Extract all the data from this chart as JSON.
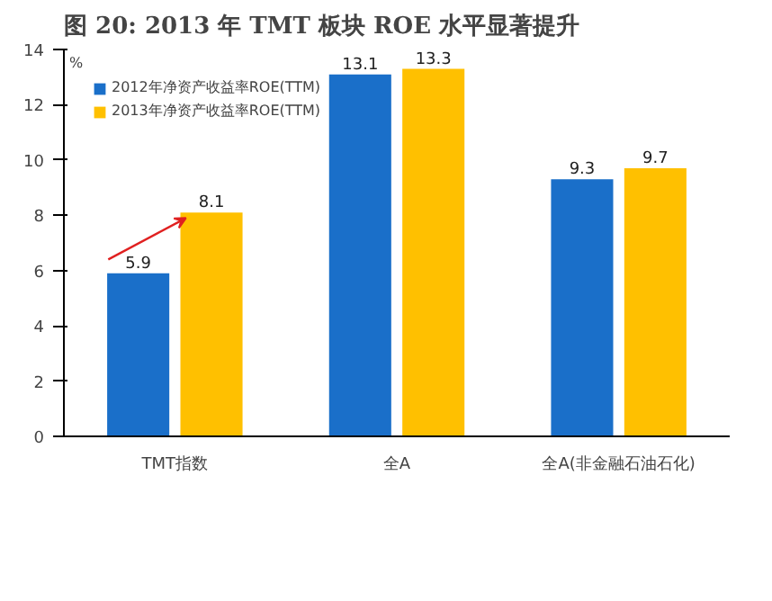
{
  "chart_data": {
    "type": "bar",
    "title": "图 20:  2013 年 TMT 板块 ROE 水平显著提升",
    "categories": [
      "TMT指数",
      "全A",
      "全A(非金融石油石化)"
    ],
    "series": [
      {
        "name": "2012年净资产收益率ROE(TTM)",
        "color": "#1a6fc9",
        "values": [
          5.9,
          13.1,
          9.3
        ]
      },
      {
        "name": "2013年净资产收益率ROE(TTM)",
        "color": "#ffc000",
        "values": [
          8.1,
          13.3,
          9.7
        ]
      }
    ],
    "ylim": [
      0,
      14
    ],
    "yticks": [
      0,
      2,
      4,
      6,
      8,
      10,
      12,
      14
    ],
    "annotations": [
      "%"
    ],
    "data_labels": true,
    "grid": false,
    "legend": "top left"
  }
}
